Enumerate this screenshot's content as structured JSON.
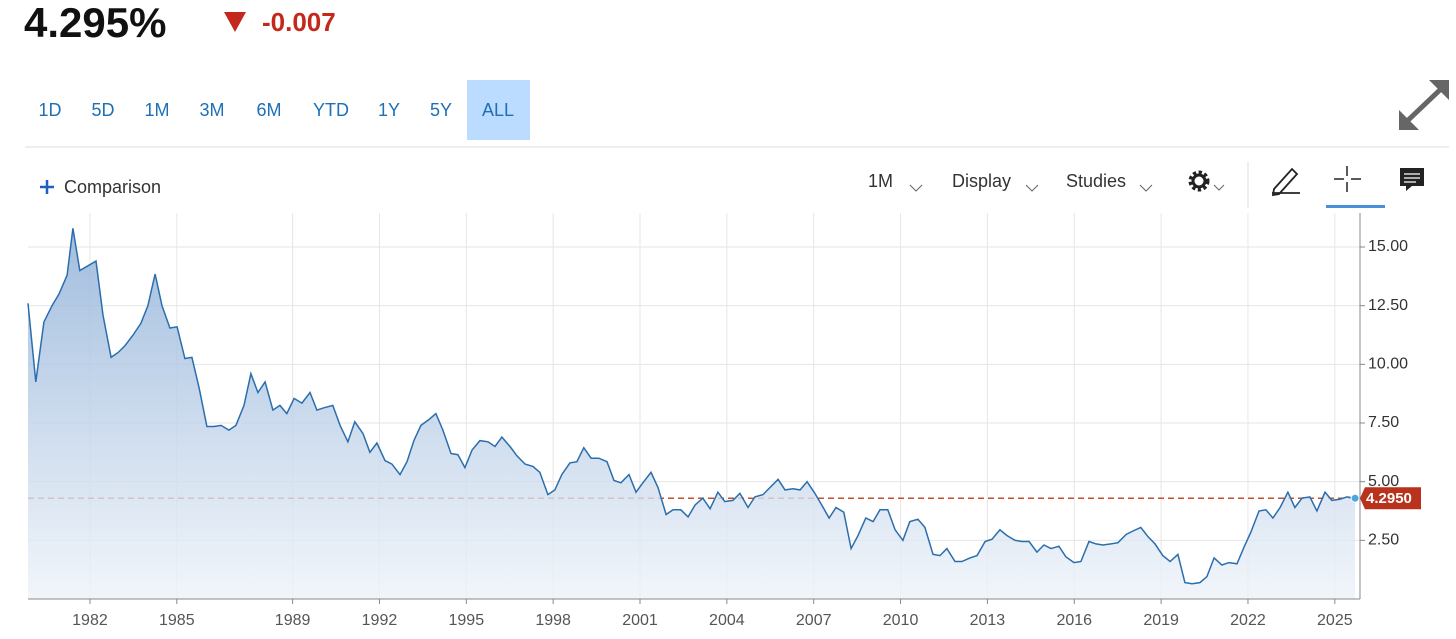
{
  "header": {
    "price": "4.295%",
    "change": "-0.007"
  },
  "ranges": {
    "buttons": [
      "1D",
      "5D",
      "1M",
      "3M",
      "6M",
      "YTD",
      "1Y",
      "5Y",
      "ALL"
    ],
    "active": 8
  },
  "toolbar": {
    "comparison": "Comparison",
    "interval": "1M",
    "display": "Display",
    "studies": "Studies"
  },
  "chart_data": {
    "type": "area",
    "color": "#2a6ead",
    "grid": true,
    "last_label": "4.2950",
    "xlim": [
      1979.86,
      2025.87
    ],
    "xticks": [
      1982,
      1985,
      1989,
      1992,
      1995,
      1998,
      2001,
      2004,
      2007,
      2010,
      2013,
      2016,
      2019,
      2022,
      2025
    ],
    "ylim": [
      0,
      16.45
    ],
    "yticks": [
      {
        "value": 2.5,
        "label": "2.50"
      },
      {
        "value": 5,
        "label": "5.00"
      },
      {
        "value": 7.5,
        "label": "7.50"
      },
      {
        "value": 10,
        "label": "10.00"
      },
      {
        "value": 12.5,
        "label": "12.50"
      },
      {
        "value": 15,
        "label": "15.00"
      }
    ],
    "x": [
      1979.86,
      1980.13,
      1980.41,
      1980.69,
      1980.93,
      1981.21,
      1981.41,
      1981.65,
      1981.93,
      1982.21,
      1982.45,
      1982.73,
      1982.97,
      1983.21,
      1983.49,
      1983.76,
      1984.0,
      1984.25,
      1984.49,
      1984.76,
      1985.01,
      1985.28,
      1985.52,
      1985.77,
      1986.04,
      1986.28,
      1986.53,
      1986.8,
      1987.04,
      1987.32,
      1987.56,
      1987.8,
      1988.05,
      1988.32,
      1988.56,
      1988.8,
      1989.05,
      1989.32,
      1989.6,
      1989.84,
      1990.08,
      1990.39,
      1990.64,
      1990.91,
      1991.15,
      1991.43,
      1991.67,
      1991.91,
      1992.19,
      1992.43,
      1992.71,
      1992.95,
      1993.19,
      1993.43,
      1993.71,
      1993.95,
      1994.19,
      1994.47,
      1994.71,
      1994.95,
      1995.2,
      1995.47,
      1995.75,
      1995.99,
      1996.23,
      1996.51,
      1996.75,
      1997.03,
      1997.3,
      1997.54,
      1997.82,
      1998.06,
      1998.3,
      1998.58,
      1998.82,
      1999.06,
      1999.31,
      1999.58,
      1999.86,
      2000.1,
      2000.34,
      2000.62,
      2000.86,
      2001.1,
      2001.38,
      2001.62,
      2001.9,
      2002.14,
      2002.41,
      2002.66,
      2002.9,
      2003.17,
      2003.42,
      2003.69,
      2003.93,
      2004.21,
      2004.45,
      2004.73,
      2004.97,
      2005.25,
      2005.49,
      2005.77,
      2006.01,
      2006.28,
      2006.53,
      2006.77,
      2007.04,
      2007.28,
      2007.53,
      2007.77,
      2008.04,
      2008.29,
      2008.53,
      2008.8,
      2009.05,
      2009.29,
      2009.56,
      2009.81,
      2010.08,
      2010.32,
      2010.6,
      2010.84,
      2011.12,
      2011.36,
      2011.6,
      2011.88,
      2012.12,
      2012.4,
      2012.64,
      2012.92,
      2013.16,
      2013.43,
      2013.68,
      2013.95,
      2014.19,
      2014.44,
      2014.71,
      2014.95,
      2015.2,
      2015.47,
      2015.71,
      2015.99,
      2016.23,
      2016.51,
      2016.75,
      2016.99,
      2017.27,
      2017.51,
      2017.79,
      2018.03,
      2018.3,
      2018.55,
      2018.79,
      2019.06,
      2019.31,
      2019.58,
      2019.82,
      2020.07,
      2020.34,
      2020.58,
      2020.83,
      2021.1,
      2021.34,
      2021.62,
      2021.86,
      2022.1,
      2022.38,
      2022.62,
      2022.86,
      2023.11,
      2023.38,
      2023.62,
      2023.87,
      2024.14,
      2024.38,
      2024.66,
      2024.9,
      2025.17,
      2025.42,
      2025.7
    ],
    "values": [
      12.6,
      9.25,
      11.8,
      12.5,
      13.0,
      13.8,
      15.8,
      14.0,
      14.2,
      14.4,
      12.1,
      10.3,
      10.5,
      10.8,
      11.25,
      11.75,
      12.5,
      13.85,
      12.5,
      11.55,
      11.6,
      10.25,
      10.3,
      9.0,
      7.35,
      7.35,
      7.4,
      7.2,
      7.4,
      8.25,
      9.6,
      8.8,
      9.25,
      8.05,
      8.25,
      7.9,
      8.55,
      8.35,
      8.8,
      8.05,
      8.15,
      8.25,
      7.4,
      6.7,
      7.55,
      7.05,
      6.25,
      6.65,
      5.9,
      5.75,
      5.3,
      5.85,
      6.75,
      7.4,
      7.65,
      7.9,
      7.2,
      6.2,
      6.15,
      5.6,
      6.35,
      6.75,
      6.7,
      6.5,
      6.9,
      6.5,
      6.1,
      5.75,
      5.65,
      5.4,
      4.45,
      4.65,
      5.3,
      5.8,
      5.85,
      6.45,
      6.0,
      6.0,
      5.85,
      5.05,
      4.95,
      5.3,
      4.55,
      4.95,
      5.4,
      4.75,
      3.6,
      3.8,
      3.8,
      3.5,
      4.0,
      4.3,
      3.85,
      4.55,
      4.15,
      4.2,
      4.5,
      3.9,
      4.35,
      4.45,
      4.75,
      5.1,
      4.65,
      4.7,
      4.65,
      5.0,
      4.5,
      4.0,
      3.45,
      3.9,
      3.7,
      2.15,
      2.7,
      3.45,
      3.3,
      3.8,
      3.8,
      2.95,
      2.5,
      3.3,
      3.4,
      3.05,
      1.9,
      1.85,
      2.15,
      1.6,
      1.6,
      1.75,
      1.85,
      2.45,
      2.55,
      2.95,
      2.7,
      2.5,
      2.45,
      2.45,
      2.0,
      2.3,
      2.15,
      2.25,
      1.8,
      1.55,
      1.6,
      2.45,
      2.35,
      2.3,
      2.35,
      2.4,
      2.75,
      2.9,
      3.05,
      2.65,
      2.35,
      1.85,
      1.6,
      1.9,
      0.7,
      0.65,
      0.7,
      0.95,
      1.75,
      1.45,
      1.55,
      1.5,
      2.2,
      2.85,
      3.75,
      3.8,
      3.45,
      3.9,
      4.55,
      3.9,
      4.3,
      4.35,
      3.75,
      4.55,
      4.2,
      4.25,
      4.35,
      4.295
    ]
  }
}
